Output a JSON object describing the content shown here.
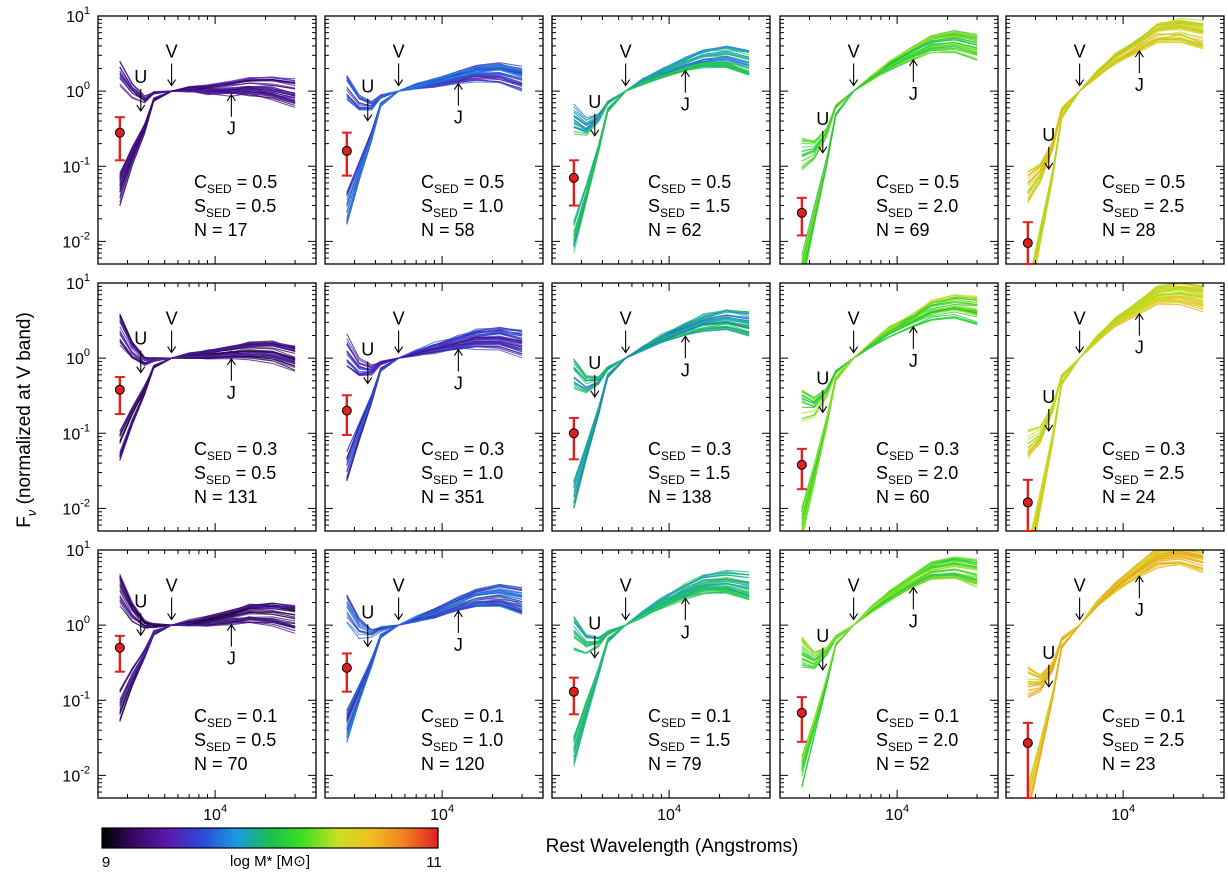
{
  "chart_data": {
    "type": "line",
    "y_label_main": "F",
    "y_label_sub": "ν",
    "y_label_rest": " (normalized at V band)",
    "x_label": "Rest Wavelength (Angstroms)",
    "x_scale": "log",
    "y_scale": "log",
    "xlim": [
      2000,
      40000
    ],
    "ylim": [
      0.005,
      10
    ],
    "x_tick_label": "10^4",
    "x_tick_base": "10",
    "x_tick_exp": "4",
    "y_tick_labels": [
      {
        "base": "10",
        "exp": "1",
        "value": 10
      },
      {
        "base": "10",
        "exp": "0",
        "value": 1
      },
      {
        "base": "10",
        "exp": "-1",
        "value": 0.1
      },
      {
        "base": "10",
        "exp": "-2",
        "value": 0.01
      }
    ],
    "band_markers": {
      "U": 3600,
      "V": 5500,
      "J": 12500
    },
    "colorbar": {
      "label": "log M* [M⊙]",
      "min": "9",
      "max": "11",
      "colors": [
        "#000000",
        "#3a0a6a",
        "#5a1ab0",
        "#2a4ad8",
        "#1a9ae0",
        "#18c050",
        "#40e020",
        "#c8e020",
        "#f0c020",
        "#f08020",
        "#e02020"
      ]
    },
    "observed_point_color": "#e02020",
    "panels": [
      {
        "row": 0,
        "col": 0,
        "c_sed": "0.5",
        "s_sed": "0.5",
        "n": "17",
        "point": 0.28,
        "err": [
          0.12,
          0.45
        ],
        "color_center": 0.15,
        "color_spread": 0.12,
        "curve": {
          "x": [
            2700,
            3200,
            3800,
            4300,
            5500,
            7000,
            9000,
            12500,
            16000,
            22000,
            30000
          ],
          "y": [
            0.3,
            0.38,
            0.5,
            0.85,
            1.0,
            1.05,
            1.05,
            1.1,
            1.15,
            1.1,
            0.95
          ]
        }
      },
      {
        "row": 0,
        "col": 1,
        "c_sed": "0.5",
        "s_sed": "1.0",
        "n": "58",
        "point": 0.16,
        "err": [
          0.075,
          0.28
        ],
        "color_center": 0.28,
        "color_spread": 0.12,
        "curve": {
          "x": [
            2700,
            3200,
            3800,
            4300,
            5500,
            7000,
            9000,
            12500,
            16000,
            22000,
            30000
          ],
          "y": [
            0.17,
            0.24,
            0.4,
            0.75,
            1.0,
            1.15,
            1.3,
            1.55,
            1.75,
            1.8,
            1.5
          ]
        }
      },
      {
        "row": 0,
        "col": 2,
        "c_sed": "0.5",
        "s_sed": "1.5",
        "n": "62",
        "point": 0.07,
        "err": [
          0.03,
          0.12
        ],
        "color_center": 0.45,
        "color_spread": 0.12,
        "curve": {
          "x": [
            2700,
            3200,
            3800,
            4300,
            5500,
            7000,
            9000,
            12500,
            16000,
            22000,
            30000
          ],
          "y": [
            0.07,
            0.12,
            0.28,
            0.62,
            1.0,
            1.35,
            1.75,
            2.3,
            2.8,
            3.0,
            2.5
          ]
        }
      },
      {
        "row": 0,
        "col": 3,
        "c_sed": "0.5",
        "s_sed": "2.0",
        "n": "69",
        "point": 0.024,
        "err": [
          0.012,
          0.038
        ],
        "color_center": 0.6,
        "color_spread": 0.12,
        "curve": {
          "x": [
            2700,
            3200,
            3800,
            4300,
            5500,
            7000,
            9000,
            12500,
            16000,
            22000,
            30000
          ],
          "y": [
            0.024,
            0.06,
            0.18,
            0.55,
            1.0,
            1.5,
            2.2,
            3.2,
            4.2,
            4.5,
            3.8
          ]
        }
      },
      {
        "row": 0,
        "col": 4,
        "c_sed": "0.5",
        "s_sed": "2.5",
        "n": "28",
        "point": 0.0095,
        "err": [
          0.005,
          0.018
        ],
        "color_center": 0.75,
        "color_spread": 0.1,
        "curve": {
          "x": [
            2700,
            3200,
            3800,
            4300,
            5500,
            7000,
            9000,
            12500,
            16000,
            22000,
            30000
          ],
          "y": [
            0.009,
            0.03,
            0.12,
            0.5,
            1.0,
            1.7,
            2.7,
            4.2,
            6.0,
            6.5,
            5.5
          ]
        }
      },
      {
        "row": 1,
        "col": 0,
        "c_sed": "0.3",
        "s_sed": "0.5",
        "n": "131",
        "point": 0.38,
        "err": [
          0.18,
          0.56
        ],
        "color_center": 0.13,
        "color_spread": 0.12,
        "curve": {
          "x": [
            2700,
            3200,
            3800,
            4300,
            5500,
            7000,
            9000,
            12500,
            16000,
            22000,
            30000
          ],
          "y": [
            0.4,
            0.46,
            0.58,
            0.85,
            1.0,
            1.08,
            1.12,
            1.2,
            1.25,
            1.2,
            1.0
          ]
        }
      },
      {
        "row": 1,
        "col": 1,
        "c_sed": "0.3",
        "s_sed": "1.0",
        "n": "351",
        "point": 0.2,
        "err": [
          0.095,
          0.32
        ],
        "color_center": 0.27,
        "color_spread": 0.14,
        "curve": {
          "x": [
            2700,
            3200,
            3800,
            4300,
            5500,
            7000,
            9000,
            12500,
            16000,
            22000,
            30000
          ],
          "y": [
            0.21,
            0.28,
            0.45,
            0.78,
            1.0,
            1.18,
            1.35,
            1.6,
            1.8,
            1.85,
            1.55
          ]
        }
      },
      {
        "row": 1,
        "col": 2,
        "c_sed": "0.3",
        "s_sed": "1.5",
        "n": "138",
        "point": 0.1,
        "err": [
          0.045,
          0.16
        ],
        "color_center": 0.45,
        "color_spread": 0.13,
        "curve": {
          "x": [
            2700,
            3200,
            3800,
            4300,
            5500,
            7000,
            9000,
            12500,
            16000,
            22000,
            30000
          ],
          "y": [
            0.1,
            0.16,
            0.32,
            0.65,
            1.0,
            1.35,
            1.8,
            2.4,
            2.9,
            3.2,
            2.8
          ]
        }
      },
      {
        "row": 1,
        "col": 3,
        "c_sed": "0.3",
        "s_sed": "2.0",
        "n": "60",
        "point": 0.038,
        "err": [
          0.018,
          0.062
        ],
        "color_center": 0.6,
        "color_spread": 0.12,
        "curve": {
          "x": [
            2700,
            3200,
            3800,
            4300,
            5500,
            7000,
            9000,
            12500,
            16000,
            22000,
            30000
          ],
          "y": [
            0.038,
            0.08,
            0.22,
            0.58,
            1.0,
            1.5,
            2.2,
            3.2,
            4.2,
            4.8,
            4.2
          ]
        }
      },
      {
        "row": 1,
        "col": 4,
        "c_sed": "0.3",
        "s_sed": "2.5",
        "n": "24",
        "point": 0.012,
        "err": [
          0.005,
          0.024
        ],
        "color_center": 0.75,
        "color_spread": 0.1,
        "curve": {
          "x": [
            2700,
            3200,
            3800,
            4300,
            5500,
            7000,
            9000,
            12500,
            16000,
            22000,
            30000
          ],
          "y": [
            0.012,
            0.035,
            0.14,
            0.52,
            1.0,
            1.8,
            3.0,
            4.8,
            6.8,
            7.3,
            6.2
          ]
        }
      },
      {
        "row": 2,
        "col": 0,
        "c_sed": "0.1",
        "s_sed": "0.5",
        "n": "70",
        "point": 0.5,
        "err": [
          0.24,
          0.72
        ],
        "color_center": 0.14,
        "color_spread": 0.12,
        "curve": {
          "x": [
            2700,
            3200,
            3800,
            4300,
            5500,
            7000,
            9000,
            12500,
            16000,
            22000,
            30000
          ],
          "y": [
            0.5,
            0.55,
            0.65,
            0.88,
            1.0,
            1.05,
            1.1,
            1.25,
            1.4,
            1.4,
            1.2
          ]
        }
      },
      {
        "row": 2,
        "col": 1,
        "c_sed": "0.1",
        "s_sed": "1.0",
        "n": "120",
        "point": 0.27,
        "err": [
          0.13,
          0.42
        ],
        "color_center": 0.3,
        "color_spread": 0.14,
        "curve": {
          "x": [
            2700,
            3200,
            3800,
            4300,
            5500,
            7000,
            9000,
            12500,
            16000,
            22000,
            30000
          ],
          "y": [
            0.27,
            0.33,
            0.5,
            0.8,
            1.0,
            1.2,
            1.45,
            1.9,
            2.3,
            2.5,
            2.1
          ]
        }
      },
      {
        "row": 2,
        "col": 2,
        "c_sed": "0.1",
        "s_sed": "1.5",
        "n": "79",
        "point": 0.13,
        "err": [
          0.065,
          0.2
        ],
        "color_center": 0.47,
        "color_spread": 0.12,
        "curve": {
          "x": [
            2700,
            3200,
            3800,
            4300,
            5500,
            7000,
            9000,
            12500,
            16000,
            22000,
            30000
          ],
          "y": [
            0.13,
            0.2,
            0.38,
            0.7,
            1.0,
            1.4,
            1.95,
            2.8,
            3.5,
            3.7,
            3.2
          ]
        }
      },
      {
        "row": 2,
        "col": 3,
        "c_sed": "0.1",
        "s_sed": "2.0",
        "n": "52",
        "point": 0.068,
        "err": [
          0.028,
          0.11
        ],
        "color_center": 0.62,
        "color_spread": 0.12,
        "curve": {
          "x": [
            2700,
            3200,
            3800,
            4300,
            5500,
            7000,
            9000,
            12500,
            16000,
            22000,
            30000
          ],
          "y": [
            0.068,
            0.12,
            0.28,
            0.62,
            1.0,
            1.6,
            2.5,
            3.9,
            5.3,
            5.8,
            5.0
          ]
        }
      },
      {
        "row": 2,
        "col": 4,
        "c_sed": "0.1",
        "s_sed": "2.5",
        "n": "23",
        "point": 0.027,
        "err": [
          0.005,
          0.05
        ],
        "color_center": 0.78,
        "color_spread": 0.1,
        "curve": {
          "x": [
            2700,
            3200,
            3800,
            4300,
            5500,
            7000,
            9000,
            12500,
            16000,
            22000,
            30000
          ],
          "y": [
            0.027,
            0.06,
            0.18,
            0.58,
            1.0,
            1.9,
            3.2,
            5.5,
            8.0,
            8.8,
            7.5
          ]
        }
      }
    ]
  }
}
